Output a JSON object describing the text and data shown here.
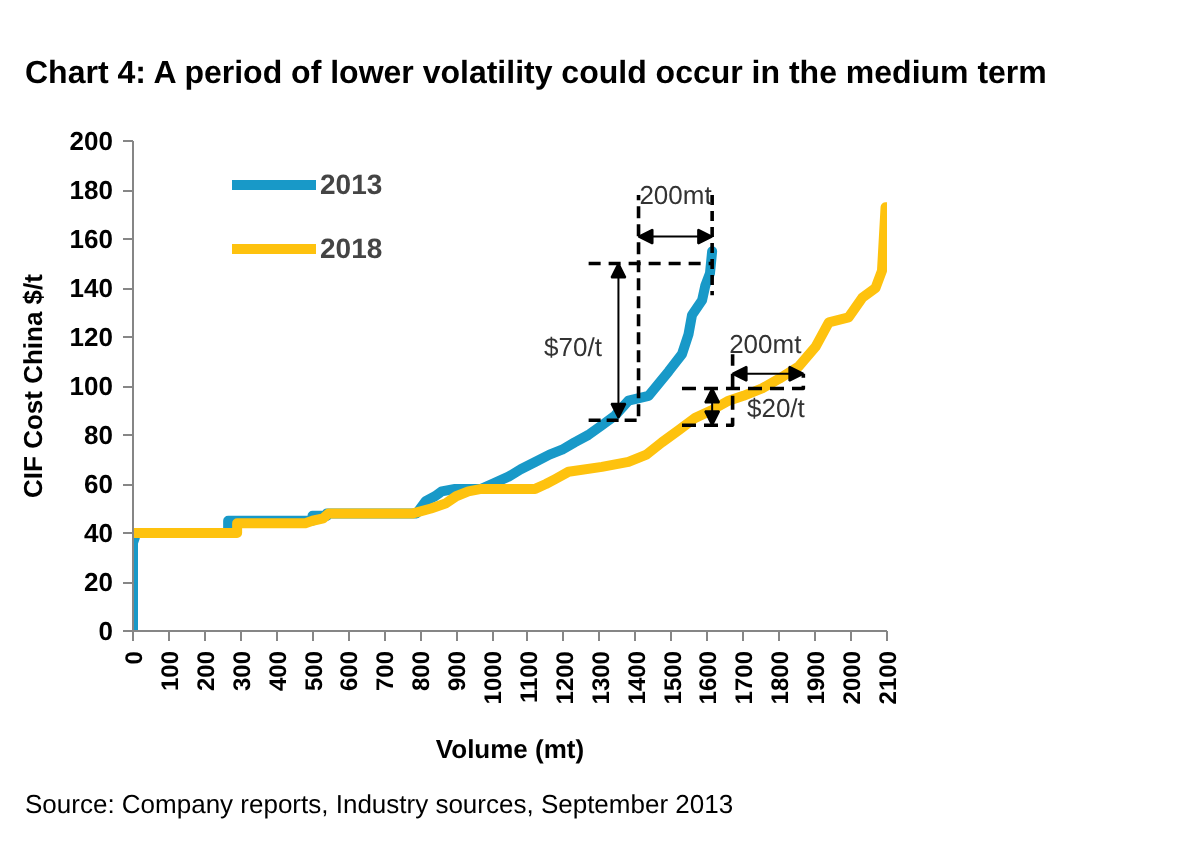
{
  "chart_data": {
    "type": "line",
    "title": "Chart 4: A period of lower volatility could occur in the medium term",
    "xlabel": "Volume (mt)",
    "ylabel": "CIF Cost China $/t",
    "xlim": [
      0,
      2100
    ],
    "xticks": [
      0,
      100,
      200,
      300,
      400,
      500,
      600,
      700,
      800,
      900,
      1000,
      1100,
      1200,
      1300,
      1400,
      1500,
      1600,
      1700,
      1800,
      1900,
      2000,
      2100
    ],
    "ylim": [
      0,
      200
    ],
    "yticks": [
      0,
      20,
      40,
      60,
      80,
      100,
      120,
      140,
      160,
      180,
      200
    ],
    "legend": "top left",
    "series": [
      {
        "name": "2013",
        "color": "#1899c8",
        "x": [
          0,
          0,
          5,
          5,
          265,
          265,
          500,
          500,
          540,
          540,
          790,
          815,
          841,
          860,
          897,
          970,
          1000,
          1046,
          1080,
          1120,
          1160,
          1195,
          1230,
          1268,
          1306,
          1343,
          1380,
          1436,
          1464,
          1492,
          1529,
          1547,
          1557,
          1585,
          1594,
          1607,
          1613
        ],
        "values": [
          0,
          36,
          38,
          40,
          40,
          45,
          45,
          47,
          47,
          48,
          48,
          53,
          55,
          57,
          58,
          58,
          60,
          63,
          66,
          69,
          72,
          74,
          77,
          80,
          84,
          88,
          94,
          96,
          101,
          106,
          113,
          121,
          129,
          135,
          141,
          146,
          155
        ]
      },
      {
        "name": "2018",
        "color": "#fec20e",
        "x": [
          0,
          290,
          290,
          480,
          500,
          530,
          545,
          780,
          830,
          870,
          900,
          934,
          970,
          1120,
          1150,
          1176,
          1213,
          1306,
          1380,
          1430,
          1473,
          1520,
          1566,
          1610,
          1659,
          1700,
          1752,
          1800,
          1854,
          1901,
          1938,
          1993,
          2031,
          2068,
          2086,
          2096
        ],
        "values": [
          40,
          40,
          44,
          44,
          45,
          46,
          48,
          48,
          50,
          52,
          55,
          57,
          58,
          58,
          60,
          62,
          65,
          67,
          69,
          72,
          77,
          82,
          87,
          90,
          94,
          96,
          99,
          103,
          108,
          116,
          126,
          128,
          136,
          140,
          147,
          173
        ]
      },
      {
        "color": "#000000",
        "line_style": "dashed",
        "x": [
          1269,
          1613
        ],
        "values": [
          150,
          150
        ]
      },
      {
        "color": "#000000",
        "line_style": "dashed",
        "x": [
          1269,
          1408,
          1408
        ],
        "values": [
          86,
          86,
          178
        ]
      },
      {
        "color": "#000000",
        "line_style": "dashed",
        "x": [
          1613,
          1613
        ],
        "values": [
          178,
          137
        ]
      },
      {
        "color": "#000000",
        "line_style": "dashed",
        "x": [
          1529,
          1670,
          1670
        ],
        "values": [
          84,
          84,
          113
        ]
      },
      {
        "color": "#000000",
        "line_style": "dashed",
        "x": [
          1529,
          1867,
          1867
        ],
        "values": [
          99,
          99,
          105
        ]
      }
    ],
    "annotations": [
      "200mt",
      "$70/t",
      "200mt",
      "$20/t",
      "Source: Company reports, Industry sources, September 2013"
    ]
  }
}
